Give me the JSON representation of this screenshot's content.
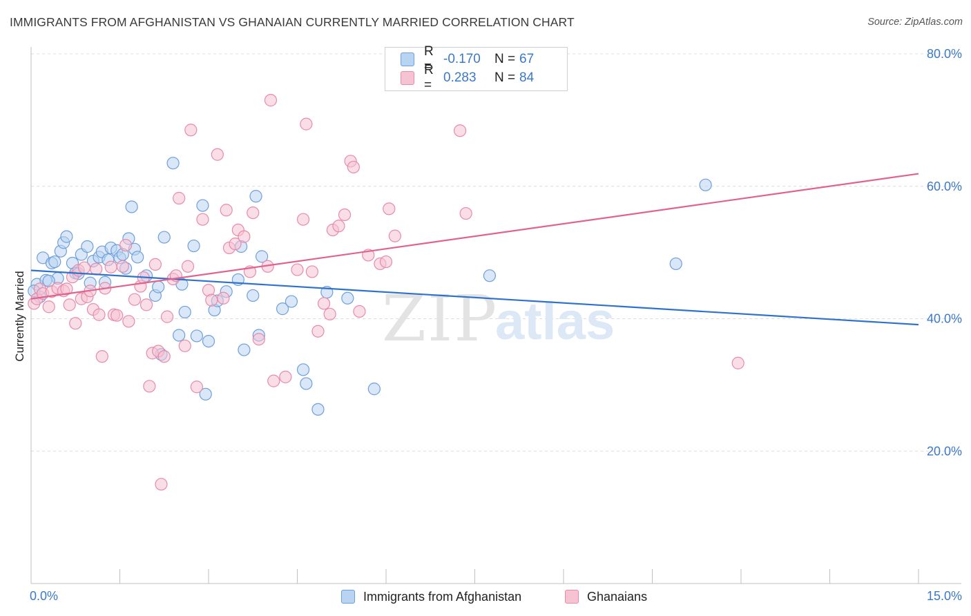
{
  "title": "IMMIGRANTS FROM AFGHANISTAN VS GHANAIAN CURRENTLY MARRIED CORRELATION CHART",
  "source": "Source: ZipAtlas.com",
  "watermark": {
    "zip": "ZIP",
    "atlas": "atlas"
  },
  "legend": {
    "r_label": "R =",
    "n_label": "N =",
    "rows": [
      {
        "r": "-0.170",
        "n": "67"
      },
      {
        "r": "0.283",
        "n": "84"
      }
    ]
  },
  "bottom_legend": [
    "Immigrants from Afghanistan",
    "Ghanaians"
  ],
  "colors": {
    "blue_fill": "#b9d3f3",
    "blue_stroke": "#6e9fdb",
    "blue_line": "#2e72cc",
    "pink_fill": "#f6c3d3",
    "pink_stroke": "#e88aa8",
    "pink_line": "#e2628e",
    "axis_text": "#3a78c9",
    "grid": "#dcdcdc"
  },
  "chart_data": {
    "type": "scatter",
    "title": "IMMIGRANTS FROM AFGHANISTAN VS GHANAIAN CURRENTLY MARRIED CORRELATION CHART",
    "xlabel": "",
    "ylabel": "Currently Married",
    "xlim": [
      0,
      15
    ],
    "ylim": [
      0,
      80
    ],
    "x_tick_labels": [
      "0.0%",
      "15.0%"
    ],
    "y_tick_labels": [
      "20.0%",
      "40.0%",
      "60.0%",
      "80.0%"
    ],
    "y_ticks": [
      20,
      40,
      60,
      80
    ],
    "grid": true,
    "legend_position": "top-center",
    "series": [
      {
        "name": "Immigrants from Afghanistan",
        "color": "#6e9fdb",
        "trend": {
          "x": [
            0,
            15
          ],
          "y": [
            47.3,
            39.1
          ]
        },
        "points": [
          {
            "x": 0.1,
            "y": 45.2
          },
          {
            "x": 0.15,
            "y": 43.3
          },
          {
            "x": 0.2,
            "y": 49.2
          },
          {
            "x": 0.25,
            "y": 45.8
          },
          {
            "x": 0.35,
            "y": 48.4
          },
          {
            "x": 0.4,
            "y": 48.6
          },
          {
            "x": 0.45,
            "y": 46.1
          },
          {
            "x": 0.5,
            "y": 50.2
          },
          {
            "x": 0.55,
            "y": 51.5
          },
          {
            "x": 0.6,
            "y": 52.4
          },
          {
            "x": 0.7,
            "y": 48.4
          },
          {
            "x": 0.75,
            "y": 46.9
          },
          {
            "x": 0.8,
            "y": 46.8
          },
          {
            "x": 0.85,
            "y": 49.7
          },
          {
            "x": 0.95,
            "y": 50.9
          },
          {
            "x": 1.0,
            "y": 45.4
          },
          {
            "x": 1.05,
            "y": 48.7
          },
          {
            "x": 1.15,
            "y": 49.3
          },
          {
            "x": 1.2,
            "y": 50.1
          },
          {
            "x": 1.25,
            "y": 45.5
          },
          {
            "x": 1.3,
            "y": 48.9
          },
          {
            "x": 1.35,
            "y": 50.7
          },
          {
            "x": 1.45,
            "y": 50.3
          },
          {
            "x": 1.5,
            "y": 49.2
          },
          {
            "x": 1.55,
            "y": 49.7
          },
          {
            "x": 1.6,
            "y": 47.6
          },
          {
            "x": 1.65,
            "y": 52.1
          },
          {
            "x": 1.7,
            "y": 56.9
          },
          {
            "x": 1.75,
            "y": 50.5
          },
          {
            "x": 1.8,
            "y": 49.3
          },
          {
            "x": 1.95,
            "y": 46.5
          },
          {
            "x": 2.1,
            "y": 43.5
          },
          {
            "x": 2.15,
            "y": 44.8
          },
          {
            "x": 2.2,
            "y": 34.6
          },
          {
            "x": 2.25,
            "y": 52.3
          },
          {
            "x": 2.4,
            "y": 63.5
          },
          {
            "x": 2.5,
            "y": 37.5
          },
          {
            "x": 2.55,
            "y": 45.2
          },
          {
            "x": 2.6,
            "y": 41.0
          },
          {
            "x": 2.75,
            "y": 51.0
          },
          {
            "x": 2.8,
            "y": 37.4
          },
          {
            "x": 2.9,
            "y": 57.1
          },
          {
            "x": 2.95,
            "y": 28.6
          },
          {
            "x": 3.0,
            "y": 36.6
          },
          {
            "x": 3.1,
            "y": 41.3
          },
          {
            "x": 3.15,
            "y": 42.7
          },
          {
            "x": 3.3,
            "y": 44.1
          },
          {
            "x": 3.5,
            "y": 45.9
          },
          {
            "x": 3.55,
            "y": 50.9
          },
          {
            "x": 3.6,
            "y": 35.3
          },
          {
            "x": 3.75,
            "y": 43.5
          },
          {
            "x": 3.8,
            "y": 58.5
          },
          {
            "x": 3.85,
            "y": 37.5
          },
          {
            "x": 3.9,
            "y": 49.4
          },
          {
            "x": 4.25,
            "y": 41.5
          },
          {
            "x": 4.4,
            "y": 42.6
          },
          {
            "x": 4.6,
            "y": 32.3
          },
          {
            "x": 4.65,
            "y": 30.2
          },
          {
            "x": 4.85,
            "y": 26.3
          },
          {
            "x": 5.0,
            "y": 44.0
          },
          {
            "x": 5.35,
            "y": 43.1
          },
          {
            "x": 5.8,
            "y": 29.4
          },
          {
            "x": 7.75,
            "y": 46.5
          },
          {
            "x": 10.9,
            "y": 48.3
          },
          {
            "x": 11.4,
            "y": 60.2
          },
          {
            "x": 0.05,
            "y": 44.2
          },
          {
            "x": 0.3,
            "y": 45.7
          }
        ]
      },
      {
        "name": "Ghanaians",
        "color": "#e88aa8",
        "trend": {
          "x": [
            0,
            15
          ],
          "y": [
            43.0,
            61.9
          ]
        },
        "points": [
          {
            "x": 0.05,
            "y": 42.3
          },
          {
            "x": 0.1,
            "y": 43.0
          },
          {
            "x": 0.15,
            "y": 44.5
          },
          {
            "x": 0.2,
            "y": 43.8
          },
          {
            "x": 0.3,
            "y": 41.8
          },
          {
            "x": 0.35,
            "y": 44.1
          },
          {
            "x": 0.45,
            "y": 44.6
          },
          {
            "x": 0.55,
            "y": 44.2
          },
          {
            "x": 0.6,
            "y": 44.5
          },
          {
            "x": 0.65,
            "y": 42.1
          },
          {
            "x": 0.7,
            "y": 46.3
          },
          {
            "x": 0.75,
            "y": 39.3
          },
          {
            "x": 0.8,
            "y": 47.3
          },
          {
            "x": 0.85,
            "y": 43.0
          },
          {
            "x": 0.9,
            "y": 47.7
          },
          {
            "x": 0.95,
            "y": 43.3
          },
          {
            "x": 1.0,
            "y": 44.2
          },
          {
            "x": 1.05,
            "y": 41.4
          },
          {
            "x": 1.1,
            "y": 47.5
          },
          {
            "x": 1.15,
            "y": 40.6
          },
          {
            "x": 1.2,
            "y": 34.3
          },
          {
            "x": 1.25,
            "y": 44.6
          },
          {
            "x": 1.35,
            "y": 47.8
          },
          {
            "x": 1.4,
            "y": 40.6
          },
          {
            "x": 1.45,
            "y": 40.5
          },
          {
            "x": 1.55,
            "y": 47.9
          },
          {
            "x": 1.6,
            "y": 51.1
          },
          {
            "x": 1.65,
            "y": 39.6
          },
          {
            "x": 1.75,
            "y": 42.9
          },
          {
            "x": 1.85,
            "y": 44.9
          },
          {
            "x": 1.9,
            "y": 46.2
          },
          {
            "x": 1.95,
            "y": 42.1
          },
          {
            "x": 2.0,
            "y": 29.8
          },
          {
            "x": 2.05,
            "y": 34.8
          },
          {
            "x": 2.1,
            "y": 48.2
          },
          {
            "x": 2.15,
            "y": 35.1
          },
          {
            "x": 2.2,
            "y": 15.0
          },
          {
            "x": 2.25,
            "y": 34.3
          },
          {
            "x": 2.3,
            "y": 40.3
          },
          {
            "x": 2.4,
            "y": 46.0
          },
          {
            "x": 2.45,
            "y": 46.5
          },
          {
            "x": 2.5,
            "y": 58.2
          },
          {
            "x": 2.6,
            "y": 35.9
          },
          {
            "x": 2.65,
            "y": 47.9
          },
          {
            "x": 2.7,
            "y": 68.5
          },
          {
            "x": 2.8,
            "y": 29.7
          },
          {
            "x": 2.9,
            "y": 55.0
          },
          {
            "x": 3.0,
            "y": 44.3
          },
          {
            "x": 3.05,
            "y": 42.8
          },
          {
            "x": 3.15,
            "y": 64.8
          },
          {
            "x": 3.25,
            "y": 43.1
          },
          {
            "x": 3.3,
            "y": 56.4
          },
          {
            "x": 3.35,
            "y": 50.7
          },
          {
            "x": 3.45,
            "y": 51.3
          },
          {
            "x": 3.5,
            "y": 53.4
          },
          {
            "x": 3.6,
            "y": 52.4
          },
          {
            "x": 3.7,
            "y": 47.1
          },
          {
            "x": 3.75,
            "y": 56.0
          },
          {
            "x": 3.85,
            "y": 36.9
          },
          {
            "x": 4.0,
            "y": 47.9
          },
          {
            "x": 4.05,
            "y": 73.0
          },
          {
            "x": 4.1,
            "y": 30.6
          },
          {
            "x": 4.3,
            "y": 31.2
          },
          {
            "x": 4.5,
            "y": 47.4
          },
          {
            "x": 4.6,
            "y": 55.0
          },
          {
            "x": 4.65,
            "y": 69.4
          },
          {
            "x": 4.75,
            "y": 47.1
          },
          {
            "x": 4.85,
            "y": 38.1
          },
          {
            "x": 4.95,
            "y": 42.3
          },
          {
            "x": 5.05,
            "y": 40.7
          },
          {
            "x": 5.1,
            "y": 53.4
          },
          {
            "x": 5.2,
            "y": 54.0
          },
          {
            "x": 5.3,
            "y": 55.7
          },
          {
            "x": 5.4,
            "y": 63.8
          },
          {
            "x": 5.45,
            "y": 62.9
          },
          {
            "x": 5.55,
            "y": 41.1
          },
          {
            "x": 5.7,
            "y": 49.6
          },
          {
            "x": 5.9,
            "y": 48.3
          },
          {
            "x": 6.0,
            "y": 48.6
          },
          {
            "x": 6.05,
            "y": 56.6
          },
          {
            "x": 6.15,
            "y": 52.5
          },
          {
            "x": 7.25,
            "y": 68.4
          },
          {
            "x": 7.35,
            "y": 55.9
          },
          {
            "x": 11.95,
            "y": 33.3
          }
        ]
      }
    ]
  }
}
